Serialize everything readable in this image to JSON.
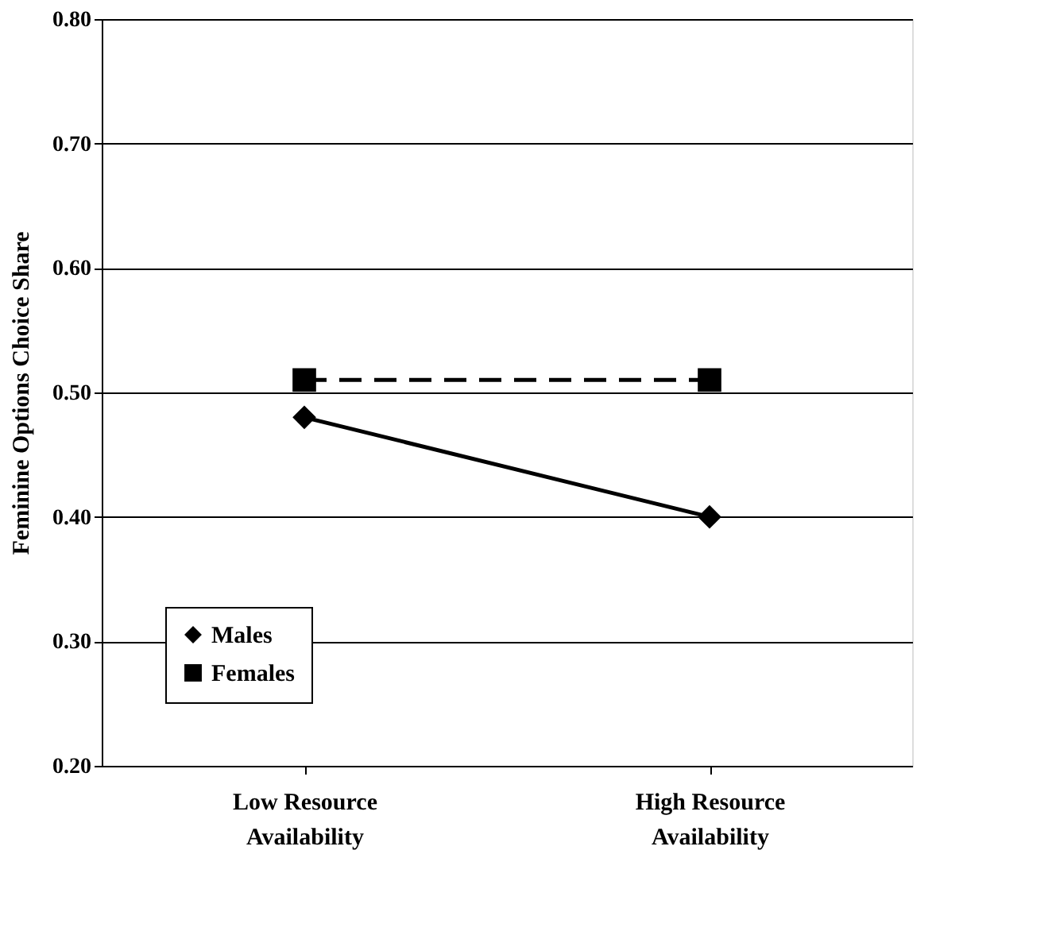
{
  "chart_data": {
    "type": "line",
    "ylabel": "Feminine Options Choice Share",
    "categories": [
      "Low Resource\nAvailability",
      "High Resource\nAvailability"
    ],
    "series": [
      {
        "name": "Males",
        "color": "#000000",
        "values": [
          0.48,
          0.4
        ],
        "marker": "diamond",
        "line_style": "solid"
      },
      {
        "name": "Females",
        "color": "#000000",
        "values": [
          0.51,
          0.51
        ],
        "marker": "square",
        "line_style": "dashed"
      }
    ],
    "ylim": [
      0.2,
      0.8
    ],
    "yticks": [
      {
        "value": 0.2,
        "label": "0.20"
      },
      {
        "value": 0.3,
        "label": "0.30"
      },
      {
        "value": 0.4,
        "label": "0.40"
      },
      {
        "value": 0.5,
        "label": "0.50"
      },
      {
        "value": 0.6,
        "label": "0.60"
      },
      {
        "value": 0.7,
        "label": "0.70"
      },
      {
        "value": 0.8,
        "label": "0.80"
      }
    ],
    "grid": "y",
    "legend": "bottom left"
  }
}
